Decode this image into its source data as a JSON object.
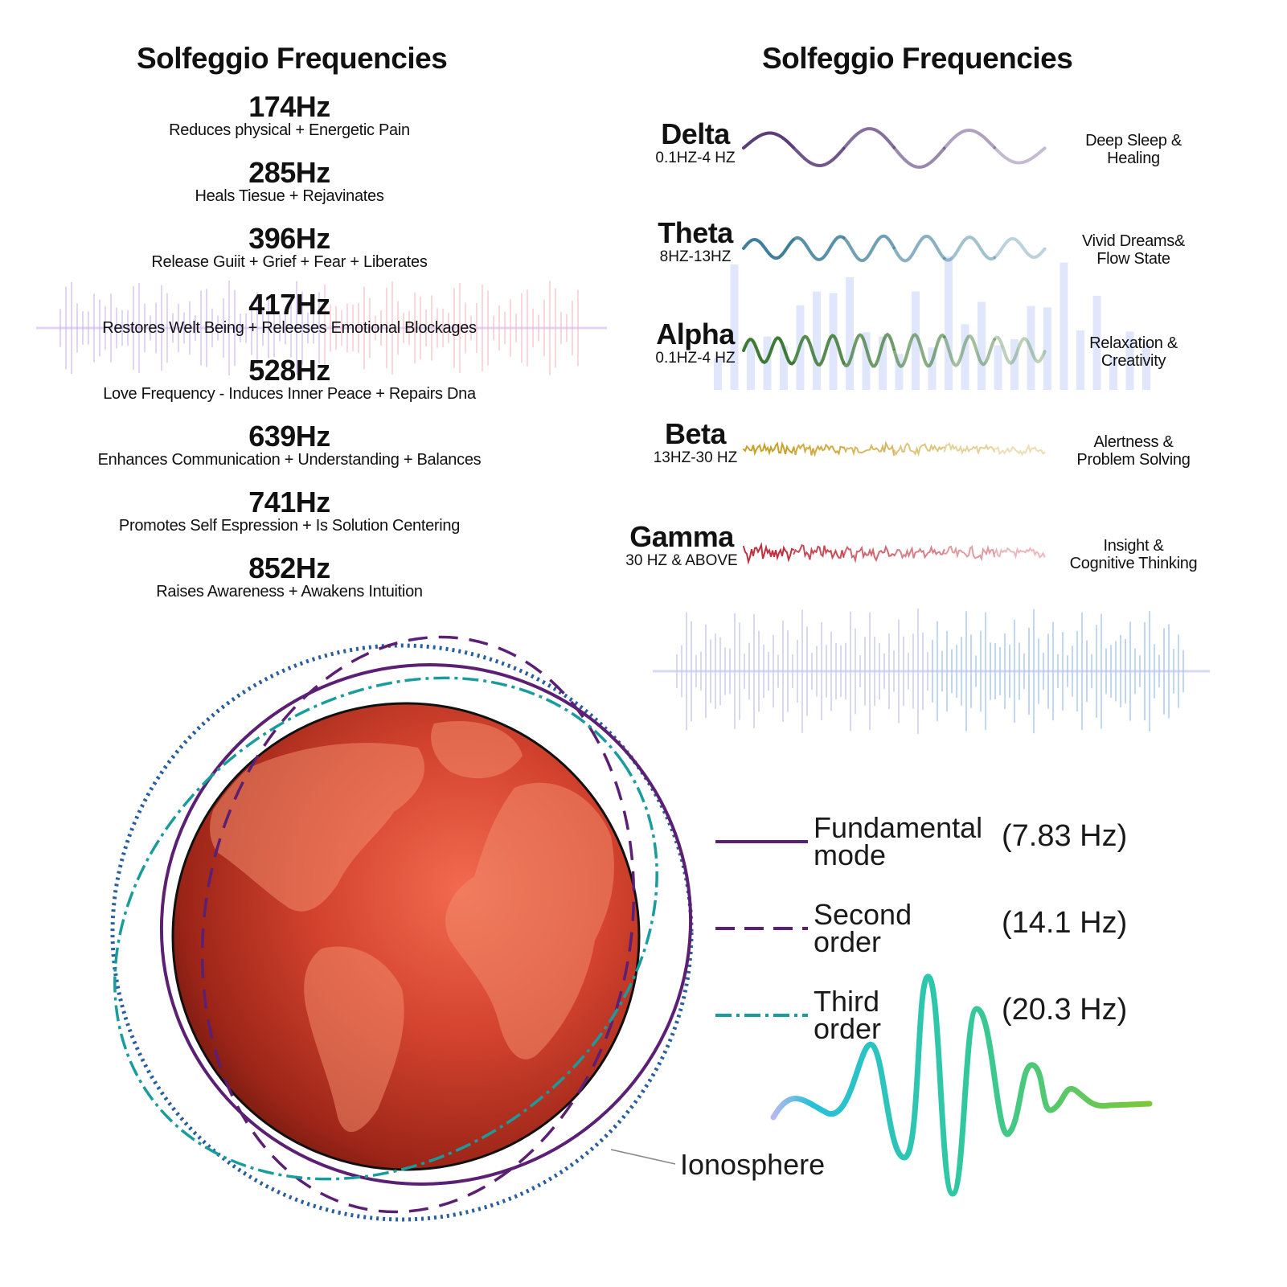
{
  "left_panel": {
    "title": "Solfeggio Frequencies",
    "items": [
      {
        "hz": "174Hz",
        "desc": "Reduces physical + Energetic Pain"
      },
      {
        "hz": "285Hz",
        "desc": "Heals Tiesue + Rejavinates"
      },
      {
        "hz": "396Hz",
        "desc": "Release Guiit + Grief + Fear + Liberates"
      },
      {
        "hz": "417Hz",
        "desc": "Restores Welt Being + Releeses Emotional Blockages"
      },
      {
        "hz": "528Hz",
        "desc": "Love Frequency - Induces Inner Peace + Repairs Dna"
      },
      {
        "hz": "639Hz",
        "desc": "Enhances Communication + Understanding + Balances"
      },
      {
        "hz": "741Hz",
        "desc": "Promotes Self Espression + Is Solution Centering"
      },
      {
        "hz": "852Hz",
        "desc": "Raises Awareness + Awakens Intuition"
      }
    ]
  },
  "right_panel": {
    "title": "Solfeggio Frequencies",
    "waves": [
      {
        "name": "Delta",
        "range": "0.1HZ-4 HZ",
        "effect_line1": "Deep Sleep &",
        "effect_line2": "Healing",
        "color": "#5a3d7a"
      },
      {
        "name": "Theta",
        "range": "8HZ-13HZ",
        "effect_line1": "Vivid Dreams&",
        "effect_line2": "Flow State",
        "color": "#3f7f9b"
      },
      {
        "name": "Alpha",
        "range": "0.1HZ-4 HZ",
        "effect_line1": "Relaxation &",
        "effect_line2": "Creativity",
        "color": "#3e7a35"
      },
      {
        "name": "Beta",
        "range": "13HZ-30 HZ",
        "effect_line1": "Alertness &",
        "effect_line2": "Problem Solving",
        "color": "#c8a128"
      },
      {
        "name": "Gamma",
        "range": "30 HZ & ABOVE",
        "effect_line1": "Insight &",
        "effect_line2": "Cognitive Thinking",
        "color": "#c0303e"
      }
    ]
  },
  "schumann": {
    "ionosphere_label": "Ionosphere",
    "modes": [
      {
        "label_line1": "Fundamental",
        "label_line2": "mode",
        "freq": "(7.83 Hz)",
        "line_style": "solid",
        "color": "#5b1f73"
      },
      {
        "label_line1": "Second",
        "label_line2": "order",
        "freq": "(14.1 Hz)",
        "line_style": "dashed",
        "color": "#5b1f73"
      },
      {
        "label_line1": "Third",
        "label_line2": "order",
        "freq": "(20.3 Hz)",
        "line_style": "dash-dot",
        "color": "#1a9c9c"
      }
    ],
    "ionosphere_color": "#2a5f9e",
    "earth_color": "#c8402e"
  }
}
